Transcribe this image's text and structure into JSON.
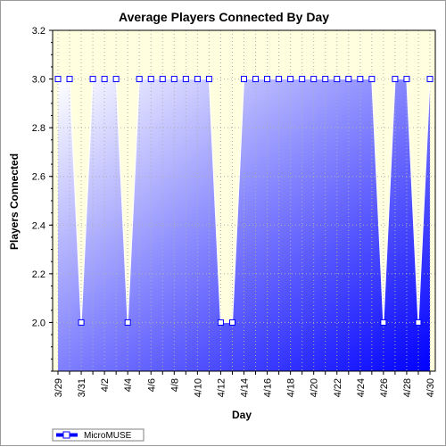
{
  "chart_data": {
    "type": "area",
    "title": "Average Players Connected By Day",
    "xlabel": "Day",
    "ylabel": "Players Connected",
    "ylim": [
      1.8,
      3.2
    ],
    "yticks": [
      "2.0",
      "2.2",
      "2.4",
      "2.6",
      "2.8",
      "3.0",
      "3.2"
    ],
    "x": [
      "3/29",
      "3/30",
      "3/31",
      "4/1",
      "4/2",
      "4/3",
      "4/4",
      "4/5",
      "4/6",
      "4/7",
      "4/8",
      "4/9",
      "4/10",
      "4/11",
      "4/12",
      "4/13",
      "4/14",
      "4/15",
      "4/16",
      "4/17",
      "4/18",
      "4/19",
      "4/20",
      "4/21",
      "4/22",
      "4/23",
      "4/24",
      "4/25",
      "4/26",
      "4/27",
      "4/28",
      "4/29",
      "4/30"
    ],
    "xtick_labels": [
      "3/29",
      "3/31",
      "4/2",
      "4/4",
      "4/6",
      "4/8",
      "4/10",
      "4/12",
      "4/14",
      "4/16",
      "4/18",
      "4/20",
      "4/22",
      "4/24",
      "4/26",
      "4/28",
      "4/30"
    ],
    "series": [
      {
        "name": "MicroMUSE",
        "values": [
          3.0,
          3.0,
          2.0,
          3.0,
          3.0,
          3.0,
          2.0,
          3.0,
          3.0,
          3.0,
          3.0,
          3.0,
          3.0,
          3.0,
          2.0,
          2.0,
          3.0,
          3.0,
          3.0,
          3.0,
          3.0,
          3.0,
          3.0,
          3.0,
          3.0,
          3.0,
          3.0,
          3.0,
          2.0,
          3.0,
          3.0,
          2.0,
          3.0
        ]
      }
    ],
    "grid": true,
    "legend": "bottom-left",
    "colors": {
      "fill_light": "#ffffff",
      "fill_dark": "#0000ff",
      "plot_background": "#ffffe0",
      "line": "#0000ff"
    }
  }
}
